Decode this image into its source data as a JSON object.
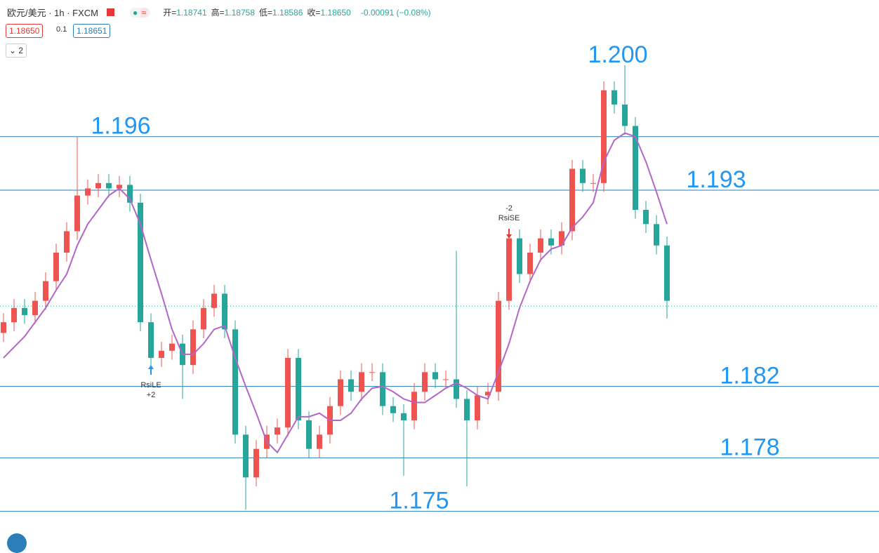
{
  "header": {
    "symbol": "欧元/美元 · 1h · FXCM",
    "ohlc": [
      {
        "label": "开=",
        "value": "1.18741"
      },
      {
        "label": "高=",
        "value": "1.18758"
      },
      {
        "label": "低=",
        "value": "1.18586"
      },
      {
        "label": "收=",
        "value": "1.18650"
      }
    ],
    "change": "-0.00091 (−0.08%)",
    "toggle": "≈",
    "bid": "1.18650",
    "spread": "0.1",
    "ask": "1.18651",
    "indicators": "2"
  },
  "chart_data": {
    "type": "candlestick",
    "open": [
      1.185,
      1.1856,
      1.1864,
      1.186,
      1.1868,
      1.1879,
      1.1895,
      1.1907,
      1.1927,
      1.1931,
      1.1934,
      1.1931,
      1.1933,
      1.1923,
      1.1856,
      1.1836,
      1.184,
      1.1844,
      1.1832,
      1.1852,
      1.1864,
      1.1872,
      1.1852,
      1.1793,
      1.1769,
      1.1785,
      1.1793,
      1.1797,
      1.1836,
      1.1801,
      1.1785,
      1.1793,
      1.1809,
      1.1824,
      1.1817,
      1.1828,
      1.1828,
      1.1809,
      1.1805,
      1.1801,
      1.1817,
      1.1828,
      1.1824,
      1.1824,
      1.1813,
      1.1801,
      1.1815,
      1.1817,
      1.1868,
      1.1903,
      1.1883,
      1.1895,
      1.1903,
      1.1899,
      1.1907,
      1.1942,
      1.1934,
      1.1934,
      1.1986,
      1.1978,
      1.1966,
      1.1919,
      1.1911,
      1.1899
    ],
    "high": [
      1.1861,
      1.1869,
      1.1869,
      1.1873,
      1.1884,
      1.19,
      1.1912,
      1.196,
      1.1936,
      1.1939,
      1.1939,
      1.1938,
      1.1938,
      1.1928,
      1.1861,
      1.1845,
      1.1849,
      1.1849,
      1.1857,
      1.1869,
      1.1877,
      1.1877,
      1.1857,
      1.1798,
      1.179,
      1.1798,
      1.1802,
      1.1841,
      1.1841,
      1.1806,
      1.1798,
      1.1814,
      1.1829,
      1.1829,
      1.1833,
      1.1833,
      1.1833,
      1.1814,
      1.181,
      1.1822,
      1.1833,
      1.1833,
      1.1829,
      1.1896,
      1.1818,
      1.182,
      1.1822,
      1.1873,
      1.1908,
      1.1908,
      1.19,
      1.1908,
      1.1908,
      1.1912,
      1.1947,
      1.1947,
      1.1939,
      1.1991,
      1.1991,
      1.2,
      1.1971,
      1.1924,
      1.1916,
      1.1904
    ],
    "low": [
      1.1845,
      1.1851,
      1.1855,
      1.1855,
      1.1863,
      1.1874,
      1.189,
      1.1902,
      1.1922,
      1.1926,
      1.1926,
      1.1926,
      1.1918,
      1.1851,
      1.1831,
      1.1831,
      1.1835,
      1.1813,
      1.1827,
      1.1847,
      1.1859,
      1.1847,
      1.1788,
      1.1751,
      1.1764,
      1.178,
      1.1788,
      1.1792,
      1.1796,
      1.178,
      1.178,
      1.1788,
      1.1804,
      1.1812,
      1.1812,
      1.1823,
      1.1804,
      1.18,
      1.177,
      1.1796,
      1.1812,
      1.1819,
      1.1819,
      1.1808,
      1.1764,
      1.1796,
      1.181,
      1.1812,
      1.1863,
      1.1878,
      1.1878,
      1.189,
      1.1894,
      1.1894,
      1.1902,
      1.1929,
      1.1929,
      1.1929,
      1.1973,
      1.1961,
      1.1914,
      1.1906,
      1.1894,
      1.1858
    ],
    "close": [
      1.1856,
      1.1864,
      1.186,
      1.1868,
      1.1879,
      1.1895,
      1.1907,
      1.1927,
      1.1931,
      1.1934,
      1.1931,
      1.1933,
      1.1923,
      1.1856,
      1.1836,
      1.184,
      1.1844,
      1.1832,
      1.1852,
      1.1864,
      1.1872,
      1.1852,
      1.1793,
      1.1769,
      1.1785,
      1.1793,
      1.1797,
      1.1836,
      1.1801,
      1.1785,
      1.1793,
      1.1809,
      1.1824,
      1.1817,
      1.1828,
      1.1828,
      1.1809,
      1.1805,
      1.1801,
      1.1817,
      1.1828,
      1.1824,
      1.1824,
      1.1813,
      1.1801,
      1.1815,
      1.1817,
      1.1868,
      1.1903,
      1.1883,
      1.1895,
      1.1903,
      1.1899,
      1.1907,
      1.1942,
      1.1934,
      1.1934,
      1.1986,
      1.1978,
      1.1966,
      1.1919,
      1.1911,
      1.1899,
      1.1868
    ],
    "ma": [
      1.1836,
      1.1842,
      1.1848,
      1.1856,
      1.1864,
      1.1874,
      1.1883,
      1.1899,
      1.1911,
      1.1919,
      1.1927,
      1.1931,
      1.1925,
      1.1911,
      1.1891,
      1.1872,
      1.1852,
      1.1838,
      1.1838,
      1.1844,
      1.1852,
      1.1854,
      1.1836,
      1.182,
      1.1805,
      1.1789,
      1.1783,
      1.1793,
      1.1803,
      1.1803,
      1.1805,
      1.1801,
      1.1801,
      1.1805,
      1.1813,
      1.1819,
      1.182,
      1.1817,
      1.1813,
      1.1811,
      1.1811,
      1.1815,
      1.1819,
      1.1822,
      1.1819,
      1.1815,
      1.1813,
      1.1828,
      1.1844,
      1.1864,
      1.1879,
      1.1891,
      1.1897,
      1.1899,
      1.1909,
      1.1915,
      1.1923,
      1.1946,
      1.1958,
      1.1962,
      1.196,
      1.1946,
      1.1929,
      1.1911
    ],
    "up_color": "#ef5350",
    "down_color": "#26a69a",
    "ma_color": "#b266c8",
    "level_color": "#2a7fb8",
    "ylim": [
      1.1729,
      1.2013
    ],
    "last": 1.1865,
    "levels": [
      {
        "value": 1.196,
        "label": "1.196",
        "line": true
      },
      {
        "value": 1.2,
        "label": "1.200",
        "line": false
      },
      {
        "value": 1.193,
        "label": "1.193",
        "line": true
      },
      {
        "value": 1.182,
        "label": "1.182",
        "line": true
      },
      {
        "value": 1.178,
        "label": "1.178",
        "line": true
      },
      {
        "value": 1.175,
        "label": "1.175",
        "line": true
      }
    ],
    "signals": [
      {
        "name": "RsiLE",
        "qty": "+2"
      },
      {
        "name": "RsiSE",
        "qty": "-2"
      }
    ]
  }
}
